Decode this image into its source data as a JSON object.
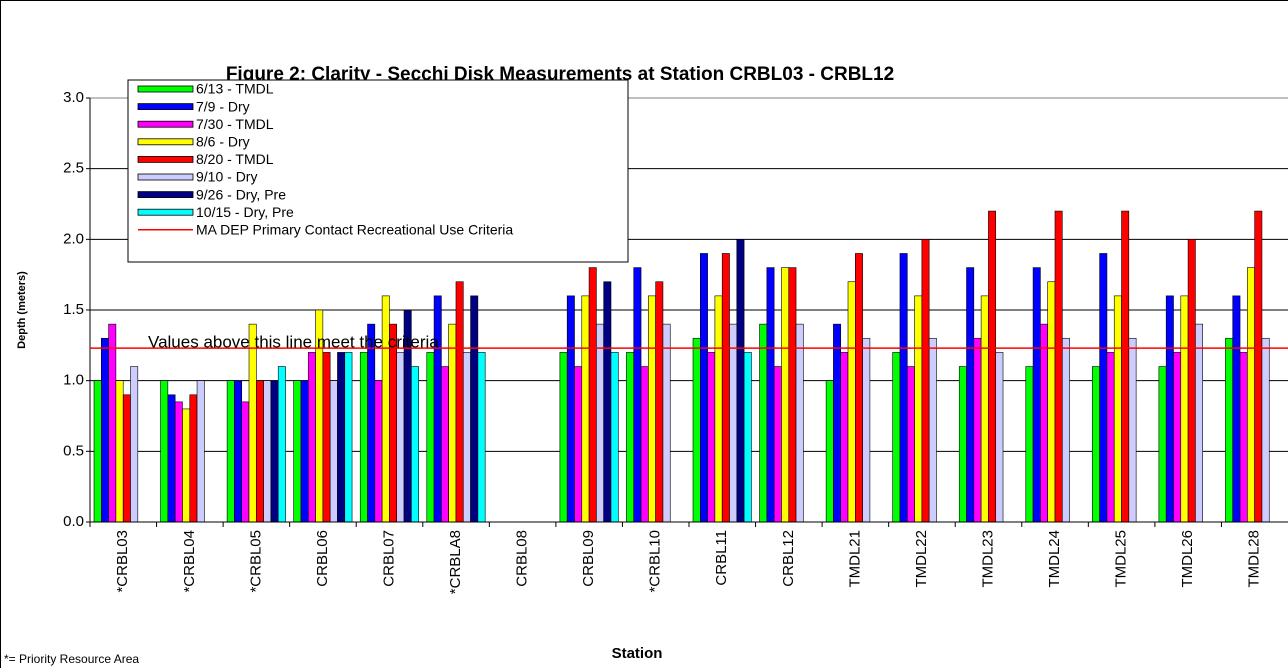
{
  "chart_data": {
    "type": "bar",
    "title": "Figure 2: Clarity - Secchi Disk Measurements at Station CRBL03 - CRBL12",
    "ylabel": "Depth (meters)",
    "xlabel": "Station",
    "footnote": "*= Priority Resource Area",
    "annotation": "Values above this line meet the criteria",
    "categories": [
      "*CRBL03",
      "*CRBL04",
      "*CRBL05",
      "CRBL06",
      "CRBL07",
      "*CRBLA8",
      "CRBL08",
      "CRBL09",
      "*CRBL10",
      "CRBL11",
      "CRBL12",
      "TMDL21",
      "TMDL22",
      "TMDL23",
      "TMDL24",
      "TMDL25",
      "TMDL26",
      "TMDL28"
    ],
    "series": [
      {
        "name": "6/13 - TMDL",
        "color": "#00ff00",
        "values": [
          1.0,
          1.0,
          1.0,
          1.0,
          1.2,
          1.2,
          null,
          1.2,
          1.2,
          1.3,
          1.4,
          1.0,
          1.2,
          1.1,
          1.1,
          1.1,
          1.1,
          1.3
        ]
      },
      {
        "name": "7/9 - Dry",
        "color": "#0000ff",
        "values": [
          1.3,
          0.9,
          1.0,
          1.0,
          1.4,
          1.6,
          null,
          1.6,
          1.8,
          1.9,
          1.8,
          1.4,
          1.9,
          1.8,
          1.8,
          1.9,
          1.6,
          1.6
        ]
      },
      {
        "name": "7/30 - TMDL",
        "color": "#ff00ff",
        "values": [
          1.4,
          0.85,
          0.85,
          1.2,
          1.0,
          1.1,
          null,
          1.1,
          1.1,
          1.2,
          1.1,
          1.2,
          1.1,
          1.3,
          1.4,
          1.2,
          1.2,
          1.2
        ]
      },
      {
        "name": "8/6 - Dry",
        "color": "#ffff00",
        "values": [
          1.0,
          0.8,
          1.4,
          1.5,
          1.6,
          1.4,
          null,
          1.6,
          1.6,
          1.6,
          1.8,
          1.7,
          1.6,
          1.6,
          1.7,
          1.6,
          1.6,
          1.8
        ]
      },
      {
        "name": "8/20 - TMDL",
        "color": "#ff0000",
        "values": [
          0.9,
          0.9,
          1.0,
          1.2,
          1.4,
          1.7,
          null,
          1.8,
          1.7,
          1.9,
          1.8,
          1.9,
          2.0,
          2.2,
          2.2,
          2.2,
          2.0,
          2.2
        ]
      },
      {
        "name": "9/10 - Dry",
        "color": "#ccccff",
        "values": [
          1.1,
          1.0,
          1.0,
          1.0,
          1.2,
          1.2,
          null,
          1.4,
          1.4,
          1.4,
          1.4,
          1.3,
          1.3,
          1.2,
          1.3,
          1.3,
          1.4,
          1.3
        ]
      },
      {
        "name": "9/26 - Dry, Pre",
        "color": "#000080",
        "values": [
          null,
          null,
          1.0,
          1.2,
          1.5,
          1.6,
          null,
          1.7,
          null,
          2.0,
          null,
          null,
          null,
          null,
          null,
          null,
          null,
          null
        ]
      },
      {
        "name": "10/15 - Dry, Pre",
        "color": "#00ffff",
        "values": [
          null,
          null,
          1.1,
          1.2,
          1.1,
          1.2,
          null,
          1.2,
          null,
          1.2,
          null,
          null,
          null,
          null,
          null,
          null,
          null,
          null
        ]
      }
    ],
    "reference_line": {
      "name": "MA DEP Primary Contact Recreational Use Criteria",
      "value": 1.23,
      "color": "#ff0000"
    },
    "ylim": [
      0,
      3
    ],
    "yticks": [
      {
        "value": 0,
        "label": "0.0"
      },
      {
        "value": 0.5,
        "label": "0.5"
      },
      {
        "value": 1,
        "label": "1.0"
      },
      {
        "value": 1.5,
        "label": "1.5"
      },
      {
        "value": 2,
        "label": "2.0"
      },
      {
        "value": 2.5,
        "label": "2.5"
      },
      {
        "value": 3,
        "label": "3.0"
      }
    ],
    "grid": true
  }
}
